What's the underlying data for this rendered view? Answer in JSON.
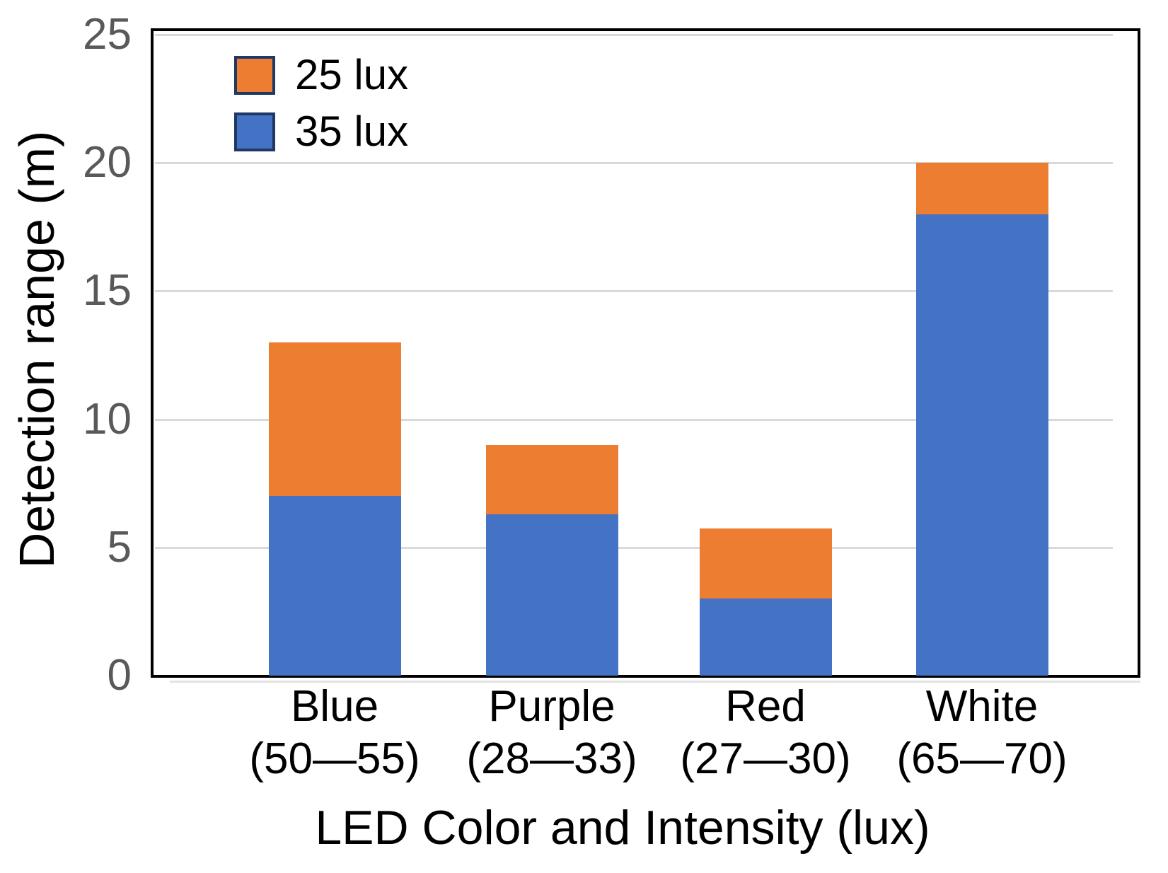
{
  "chart_data": {
    "type": "bar",
    "stacked": true,
    "title": "",
    "xlabel": "LED Color and Intensity (lux)",
    "ylabel": "Detection range (m)",
    "ylim": [
      0,
      25
    ],
    "yticks": [
      0,
      5,
      10,
      15,
      20,
      25
    ],
    "grid": true,
    "legend_position": "top-left-inside",
    "categories": [
      "Blue",
      "Purple",
      "Red",
      "White"
    ],
    "category_sublabels": [
      "(50—55)",
      "(28—33)",
      "(27—30)",
      "(65—70)"
    ],
    "series": [
      {
        "name": "35 lux",
        "color": "#4472C4",
        "values": [
          7,
          6.3,
          3,
          18
        ]
      },
      {
        "name": "25 lux",
        "color": "#ED7D31",
        "values": [
          6,
          2.7,
          2.75,
          2
        ]
      }
    ],
    "stack_totals": [
      13,
      9,
      5.75,
      20
    ],
    "legend": [
      {
        "label": "25 lux",
        "color": "#ED7D31"
      },
      {
        "label": "35 lux",
        "color": "#4472C4"
      }
    ],
    "colors": {
      "grid": "#D9D9D9",
      "axis": "#000000",
      "tick_label": "#595959",
      "legend_swatch_border": "#1F3864"
    }
  }
}
